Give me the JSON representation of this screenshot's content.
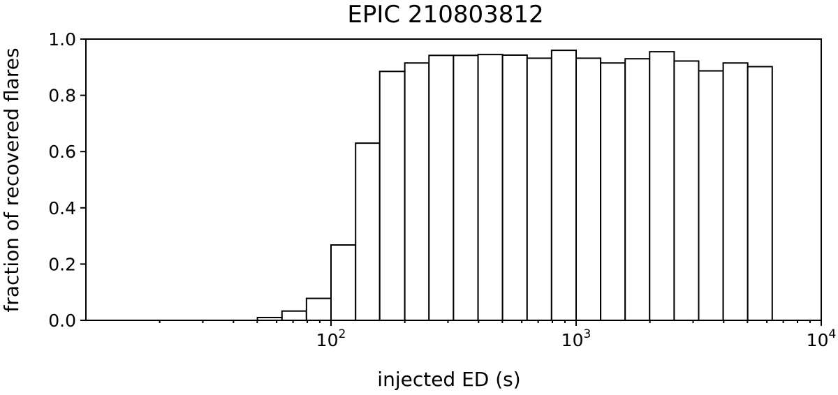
{
  "chart_data": {
    "type": "bar",
    "title": "EPIC 210803812",
    "xlabel": "injected ED (s)",
    "ylabel": "fraction of recovered flares",
    "x_scale": "log",
    "xlim": [
      10,
      10000
    ],
    "ylim": [
      0,
      1.0
    ],
    "grid": false,
    "y_ticks": [
      "0.0",
      "0.2",
      "0.4",
      "0.6",
      "0.8",
      "1.0"
    ],
    "y_tick_values": [
      0,
      0.2,
      0.4,
      0.6,
      0.8,
      1.0
    ],
    "x_major_ticks": [
      {
        "value": 100,
        "base": "10",
        "exp": "2"
      },
      {
        "value": 1000,
        "base": "10",
        "exp": "3"
      },
      {
        "value": 10000,
        "base": "10",
        "exp": "4"
      }
    ],
    "bins": [
      {
        "x0": 50.1,
        "x1": 63.1,
        "value": 0.01
      },
      {
        "x0": 63.1,
        "x1": 79.4,
        "value": 0.033
      },
      {
        "x0": 79.4,
        "x1": 100,
        "value": 0.078
      },
      {
        "x0": 100,
        "x1": 126,
        "value": 0.268
      },
      {
        "x0": 126,
        "x1": 158,
        "value": 0.63
      },
      {
        "x0": 158,
        "x1": 200,
        "value": 0.885
      },
      {
        "x0": 200,
        "x1": 251,
        "value": 0.915
      },
      {
        "x0": 251,
        "x1": 316,
        "value": 0.942
      },
      {
        "x0": 316,
        "x1": 398,
        "value": 0.942
      },
      {
        "x0": 398,
        "x1": 501,
        "value": 0.945
      },
      {
        "x0": 501,
        "x1": 631,
        "value": 0.943
      },
      {
        "x0": 631,
        "x1": 794,
        "value": 0.932
      },
      {
        "x0": 794,
        "x1": 1000,
        "value": 0.96
      },
      {
        "x0": 1000,
        "x1": 1259,
        "value": 0.932
      },
      {
        "x0": 1259,
        "x1": 1585,
        "value": 0.915
      },
      {
        "x0": 1585,
        "x1": 1995,
        "value": 0.93
      },
      {
        "x0": 1995,
        "x1": 2512,
        "value": 0.955
      },
      {
        "x0": 2512,
        "x1": 3162,
        "value": 0.922
      },
      {
        "x0": 3162,
        "x1": 3981,
        "value": 0.887
      },
      {
        "x0": 3981,
        "x1": 5012,
        "value": 0.915
      },
      {
        "x0": 5012,
        "x1": 6310,
        "value": 0.902
      }
    ]
  }
}
